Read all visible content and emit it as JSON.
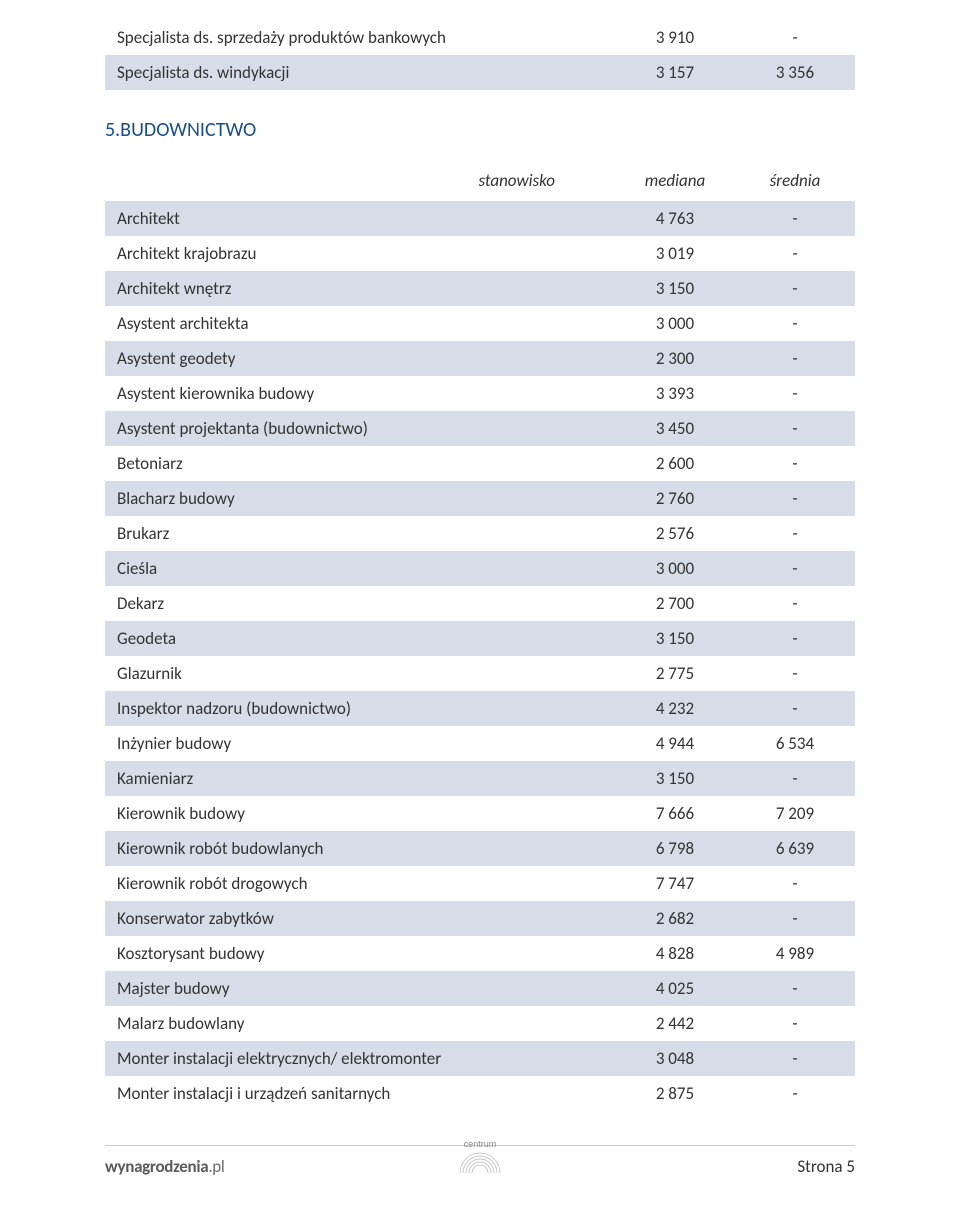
{
  "top_table": {
    "rows": [
      {
        "label": "Specjalista ds. sprzedaży produktów bankowych",
        "median": "3 910",
        "avg": "-",
        "shaded": false
      },
      {
        "label": "Specjalista ds. windykacji",
        "median": "3 157",
        "avg": "3 356",
        "shaded": true
      }
    ]
  },
  "section": {
    "title": "5.BUDOWNICTWO",
    "headers": {
      "col1": "stanowisko",
      "col2": "mediana",
      "col3": "średnia"
    },
    "rows": [
      {
        "label": "Architekt",
        "median": "4 763",
        "avg": "-",
        "shaded": true
      },
      {
        "label": "Architekt krajobrazu",
        "median": "3 019",
        "avg": "-",
        "shaded": false
      },
      {
        "label": "Architekt wnętrz",
        "median": "3 150",
        "avg": "-",
        "shaded": true
      },
      {
        "label": "Asystent architekta",
        "median": "3 000",
        "avg": "-",
        "shaded": false
      },
      {
        "label": "Asystent geodety",
        "median": "2 300",
        "avg": "-",
        "shaded": true
      },
      {
        "label": "Asystent kierownika budowy",
        "median": "3 393",
        "avg": "-",
        "shaded": false
      },
      {
        "label": "Asystent projektanta (budownictwo)",
        "median": "3 450",
        "avg": "-",
        "shaded": true
      },
      {
        "label": "Betoniarz",
        "median": "2 600",
        "avg": "-",
        "shaded": false
      },
      {
        "label": "Blacharz budowy",
        "median": "2 760",
        "avg": "-",
        "shaded": true
      },
      {
        "label": "Brukarz",
        "median": "2 576",
        "avg": "-",
        "shaded": false
      },
      {
        "label": "Cieśla",
        "median": "3 000",
        "avg": "-",
        "shaded": true
      },
      {
        "label": "Dekarz",
        "median": "2 700",
        "avg": "-",
        "shaded": false
      },
      {
        "label": "Geodeta",
        "median": "3 150",
        "avg": "-",
        "shaded": true
      },
      {
        "label": "Glazurnik",
        "median": "2 775",
        "avg": "-",
        "shaded": false
      },
      {
        "label": "Inspektor nadzoru (budownictwo)",
        "median": "4 232",
        "avg": "-",
        "shaded": true
      },
      {
        "label": "Inżynier budowy",
        "median": "4 944",
        "avg": "6 534",
        "shaded": false
      },
      {
        "label": "Kamieniarz",
        "median": "3 150",
        "avg": "-",
        "shaded": true
      },
      {
        "label": "Kierownik budowy",
        "median": "7 666",
        "avg": "7 209",
        "shaded": false
      },
      {
        "label": "Kierownik robót budowlanych",
        "median": "6 798",
        "avg": "6 639",
        "shaded": true
      },
      {
        "label": "Kierownik robót drogowych",
        "median": "7 747",
        "avg": "-",
        "shaded": false
      },
      {
        "label": "Konserwator zabytków",
        "median": "2 682",
        "avg": "-",
        "shaded": true
      },
      {
        "label": "Kosztorysant budowy",
        "median": "4 828",
        "avg": "4 989",
        "shaded": false
      },
      {
        "label": "Majster budowy",
        "median": "4 025",
        "avg": "-",
        "shaded": true
      },
      {
        "label": "Malarz budowlany",
        "median": "2 442",
        "avg": "-",
        "shaded": false
      },
      {
        "label": "Monter instalacji elektrycznych/ elektromonter",
        "median": "3 048",
        "avg": "-",
        "shaded": true
      },
      {
        "label": "Monter instalacji i urządzeń sanitarnych",
        "median": "2 875",
        "avg": "-",
        "shaded": false
      }
    ]
  },
  "footer": {
    "site_bold": "wynagrodzenia",
    "site_rest": ".pl",
    "page_label": "Strona 5",
    "logo_label": "centrum"
  },
  "colors": {
    "row_shade": "#d6dde8",
    "title": "#1a4e8a",
    "text": "#333333",
    "footer_grey": "#6b6b6b",
    "border": "#cccccc"
  }
}
